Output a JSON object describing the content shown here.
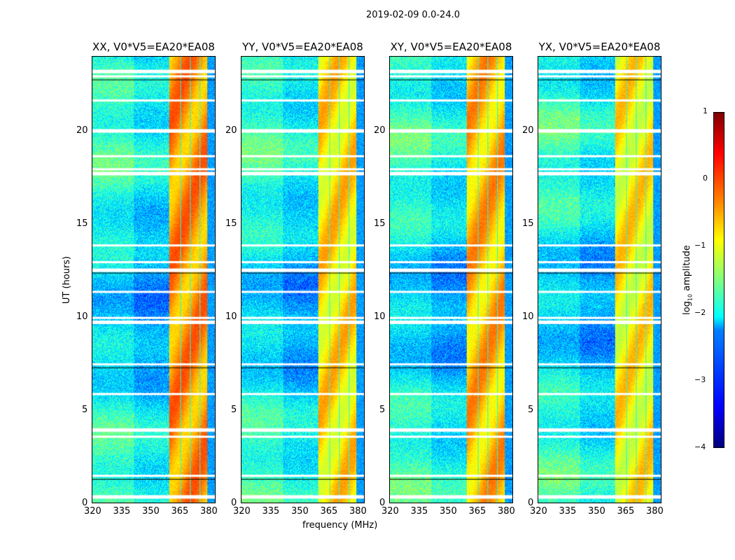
{
  "chart_data": {
    "type": "heatmap",
    "suptitle": "2019-02-09 0.0-24.0",
    "xlabel": "frequency (MHz)",
    "ylabel": "UT (hours)",
    "xlim": [
      320,
      384
    ],
    "ylim": [
      0,
      24
    ],
    "xticks": [
      320,
      335,
      350,
      365,
      380
    ],
    "yticks": [
      0,
      5,
      10,
      15,
      20
    ],
    "panels": [
      {
        "title": "XX, V0*V5=EA20*EA08",
        "band_level": -0.5
      },
      {
        "title": "YY, V0*V5=EA20*EA08",
        "band_level": -0.9
      },
      {
        "title": "XY, V0*V5=EA20*EA08",
        "band_level": -0.7
      },
      {
        "title": "YX, V0*V5=EA20*EA08",
        "band_level": -1.0
      }
    ],
    "rfi_band_mhz": [
      360,
      380
    ],
    "rfi_gap_channels_mhz": [
      366,
      371,
      376
    ],
    "background_level": -2.6,
    "flagged_hours": [
      23.3,
      23.0,
      21.7,
      20.1,
      18.7,
      18.0,
      17.8,
      13.9,
      13.0,
      12.6,
      11.4,
      10.0,
      9.8,
      7.5,
      5.9,
      4.0,
      3.6,
      1.5,
      0.4
    ],
    "colorbar": {
      "label_prefix": "log",
      "label_sub": "10",
      "label_suffix": " amplitude",
      "range": [
        -4,
        1
      ],
      "ticks": [
        "1",
        "0",
        "−1",
        "−2",
        "−3",
        "−4"
      ],
      "colormap": "jet"
    }
  }
}
